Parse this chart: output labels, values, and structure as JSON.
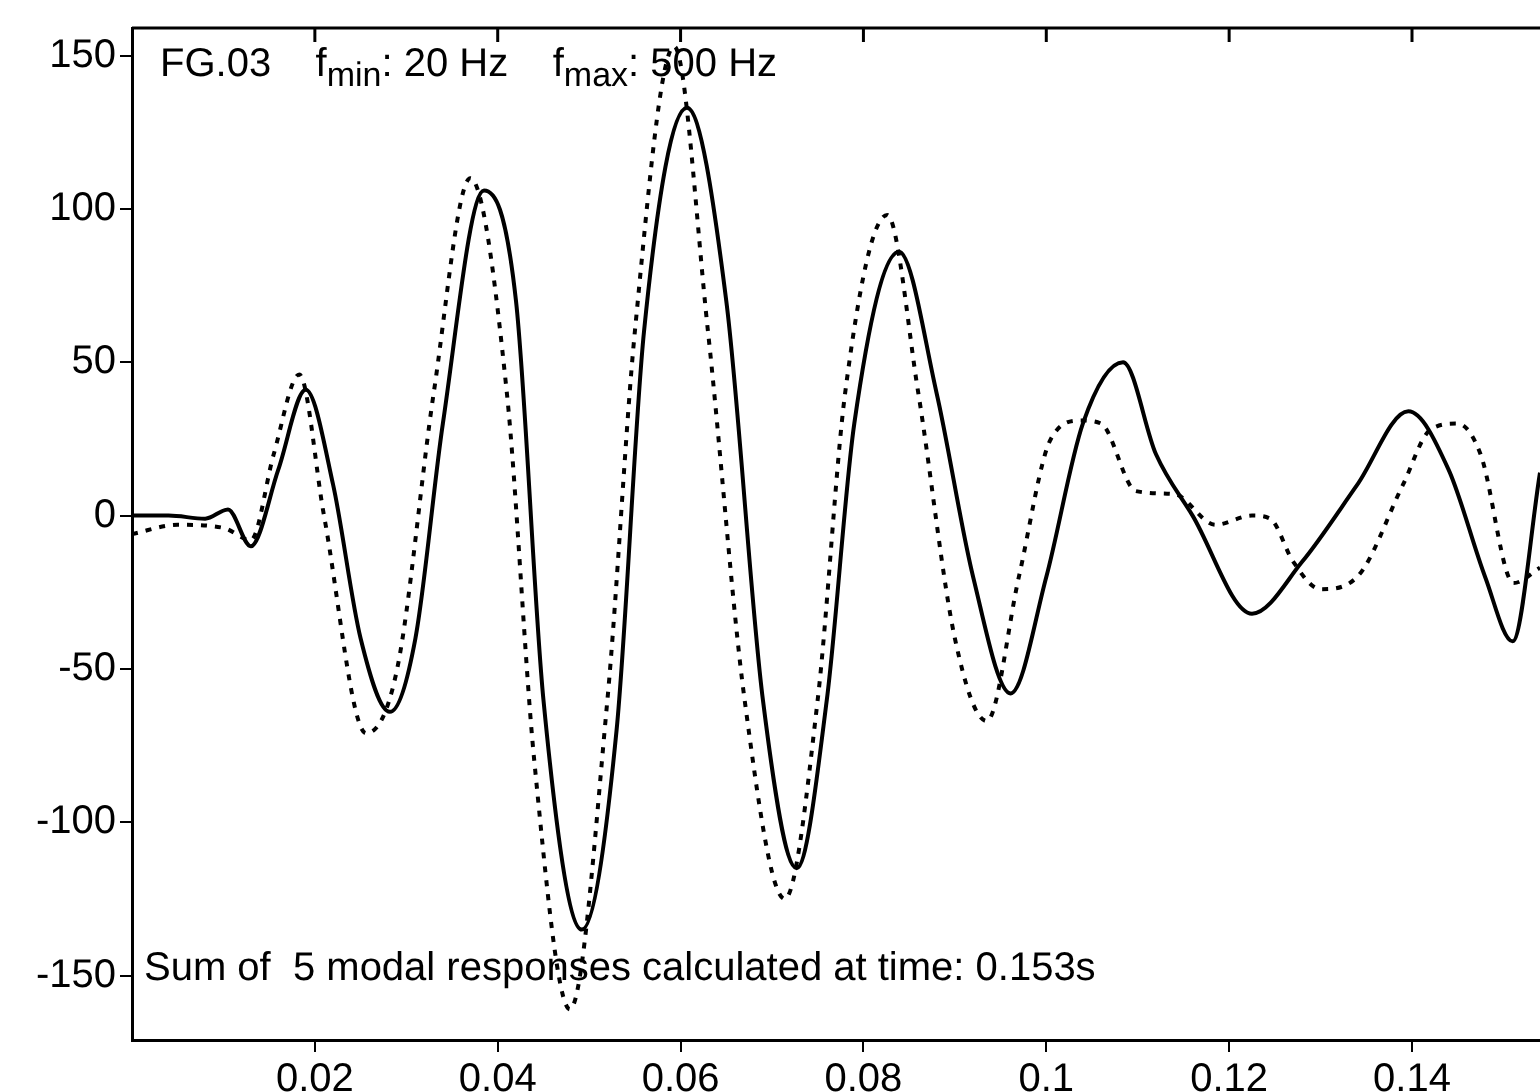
{
  "chart_data": {
    "type": "line",
    "annotations": [
      "FG.03    f$_{min}$: 20 Hz    f$_{max}$: 500 Hz",
      "Sum of  5 modal responses calculated at time: 0.153s"
    ],
    "xlim": [
      0,
      0.154
    ],
    "xticks": [
      0.02,
      0.04,
      0.06,
      0.08,
      0.1,
      0.12,
      0.14
    ],
    "ylim": [
      -171,
      159
    ],
    "yticks": [
      -150,
      -100,
      -50,
      0,
      50,
      100,
      150
    ],
    "grid": false,
    "legend": false,
    "marker": "none",
    "series": [
      {
        "color": "#000000",
        "line_style": "solid",
        "x": [
          0,
          0.004,
          0.008,
          0.0105,
          0.013,
          0.016,
          0.019,
          0.022,
          0.025,
          0.0282,
          0.031,
          0.034,
          0.0385,
          0.042,
          0.045,
          0.0492,
          0.053,
          0.056,
          0.0607,
          0.065,
          0.069,
          0.0727,
          0.076,
          0.079,
          0.0839,
          0.088,
          0.092,
          0.0961,
          0.1,
          0.104,
          0.1084,
          0.112,
          0.116,
          0.1225,
          0.128,
          0.134,
          0.1396,
          0.144,
          0.148,
          0.151,
          0.154
        ],
        "values": [
          0,
          0,
          -1,
          2,
          -10,
          15,
          41,
          10,
          -40,
          -64,
          -40,
          30,
          106,
          70,
          -60,
          -135,
          -70,
          60,
          133,
          70,
          -60,
          -115,
          -60,
          30,
          86,
          40,
          -20,
          -58,
          -20,
          30,
          50,
          20,
          0,
          -32,
          -15,
          10,
          34,
          15,
          -20,
          -41,
          14
        ]
      },
      {
        "color": "#000000",
        "line_style": "dotted",
        "x": [
          0,
          0.005,
          0.01,
          0.013,
          0.0155,
          0.0183,
          0.021,
          0.0256,
          0.029,
          0.033,
          0.037,
          0.041,
          0.044,
          0.0479,
          0.052,
          0.055,
          0.0593,
          0.063,
          0.067,
          0.0714,
          0.075,
          0.078,
          0.0826,
          0.086,
          0.09,
          0.0935,
          0.097,
          0.1005,
          0.1038,
          0.106,
          0.1098,
          0.114,
          0.1185,
          0.1225,
          0.1245,
          0.127,
          0.13,
          0.134,
          0.139,
          0.142,
          0.145,
          0.1475,
          0.1511,
          0.154
        ],
        "values": [
          -6,
          -3,
          -4,
          -8,
          20,
          46,
          0,
          -71,
          -50,
          40,
          110,
          40,
          -80,
          -161,
          -60,
          60,
          153,
          60,
          -60,
          -125,
          -60,
          40,
          98,
          40,
          -40,
          -67,
          -20,
          25,
          31,
          30,
          8,
          7,
          -3,
          0,
          -1,
          -15,
          -24,
          -20,
          10,
          28,
          30,
          20,
          -22,
          -17
        ]
      }
    ]
  }
}
